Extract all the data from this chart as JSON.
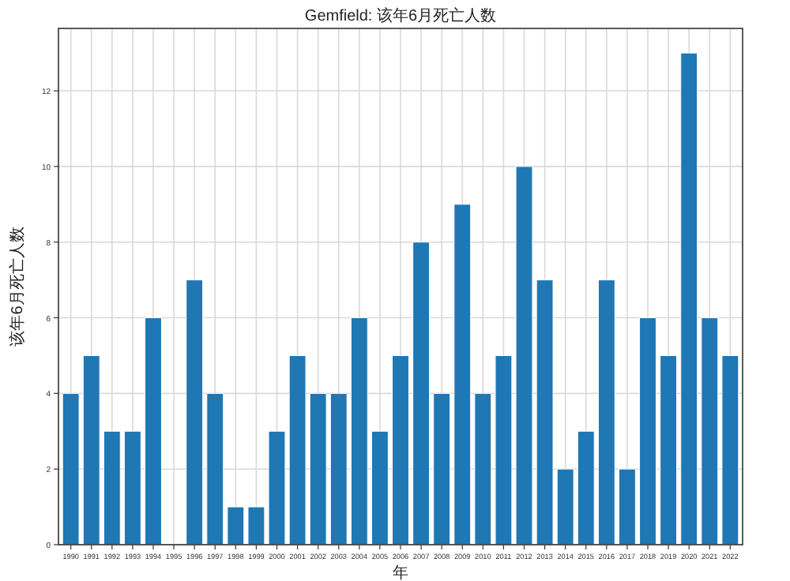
{
  "chart_data": {
    "type": "bar",
    "title": "Gemfield: 该年6月死亡人数",
    "xlabel": "年",
    "ylabel": "该年6月死亡人数",
    "categories": [
      "1990",
      "1991",
      "1992",
      "1993",
      "1994",
      "1995",
      "1996",
      "1997",
      "1998",
      "1999",
      "2000",
      "2001",
      "2002",
      "2003",
      "2004",
      "2005",
      "2006",
      "2007",
      "2008",
      "2009",
      "2010",
      "2011",
      "2012",
      "2013",
      "2014",
      "2015",
      "2016",
      "2017",
      "2018",
      "2019",
      "2020",
      "2021",
      "2022"
    ],
    "values": [
      4,
      5,
      3,
      3,
      6,
      0,
      7,
      4,
      1,
      1,
      3,
      5,
      4,
      4,
      6,
      3,
      5,
      8,
      4,
      9,
      4,
      5,
      10,
      7,
      2,
      3,
      7,
      2,
      6,
      5,
      13,
      6,
      5
    ],
    "color": "#1f77b4",
    "ylim": [
      0,
      13.65
    ],
    "yticks": [
      0,
      2,
      4,
      6,
      8,
      10,
      12
    ],
    "grid": true
  }
}
